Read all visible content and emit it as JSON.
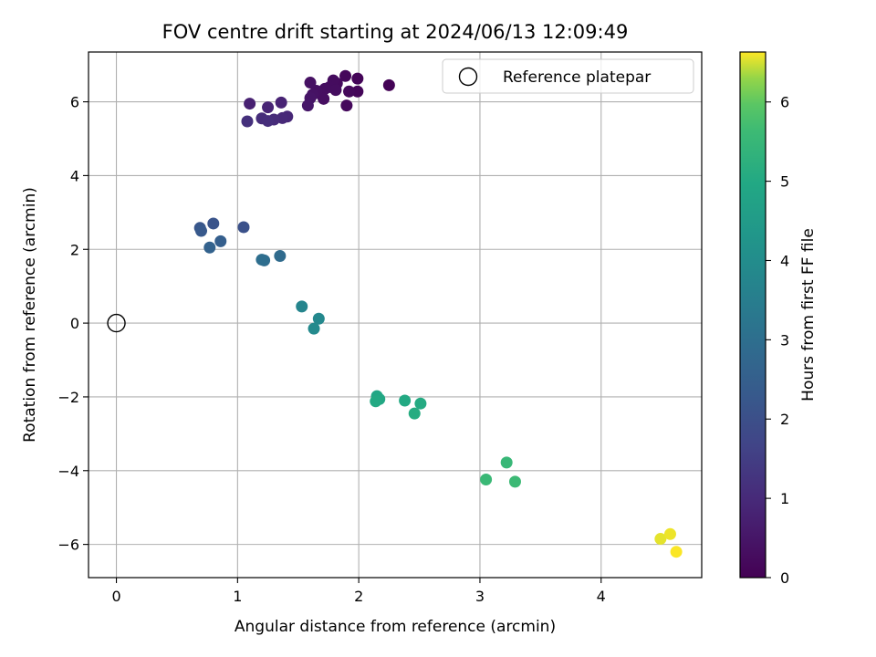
{
  "chart_data": {
    "type": "scatter",
    "title": "FOV centre drift starting at 2024/06/13 12:09:49",
    "xlabel": "Angular distance from reference (arcmin)",
    "ylabel": "Rotation from reference (arcmin)",
    "xlim": [
      -0.23,
      4.83
    ],
    "ylim": [
      -6.9,
      7.35
    ],
    "xticks": [
      0,
      1,
      2,
      3,
      4
    ],
    "yticks": [
      -6,
      -4,
      -2,
      0,
      2,
      4,
      6
    ],
    "grid": true,
    "legend": {
      "location": "upper right",
      "entries": [
        "Reference platepar"
      ]
    },
    "reference_point": {
      "name": "Reference platepar",
      "x": 0,
      "y": 0
    },
    "colorbar": {
      "label": "Hours from first FF file",
      "colormap": "viridis",
      "range": [
        0,
        6.63
      ],
      "ticks": [
        0,
        1,
        2,
        3,
        4,
        5,
        6
      ]
    },
    "points": [
      {
        "x": 2.25,
        "y": 6.45,
        "hours": 0.05
      },
      {
        "x": 1.99,
        "y": 6.63,
        "hours": 0.1
      },
      {
        "x": 1.99,
        "y": 6.28,
        "hours": 0.12
      },
      {
        "x": 1.89,
        "y": 6.7,
        "hours": 0.15
      },
      {
        "x": 1.92,
        "y": 6.28,
        "hours": 0.18
      },
      {
        "x": 1.9,
        "y": 5.9,
        "hours": 0.2
      },
      {
        "x": 1.82,
        "y": 6.5,
        "hours": 0.22
      },
      {
        "x": 1.79,
        "y": 6.58,
        "hours": 0.25
      },
      {
        "x": 1.76,
        "y": 6.4,
        "hours": 0.27
      },
      {
        "x": 1.81,
        "y": 6.32,
        "hours": 0.28
      },
      {
        "x": 1.72,
        "y": 6.35,
        "hours": 0.3
      },
      {
        "x": 1.69,
        "y": 6.2,
        "hours": 0.32
      },
      {
        "x": 1.71,
        "y": 6.08,
        "hours": 0.33
      },
      {
        "x": 1.65,
        "y": 6.3,
        "hours": 0.35
      },
      {
        "x": 1.6,
        "y": 6.52,
        "hours": 0.37
      },
      {
        "x": 1.62,
        "y": 6.2,
        "hours": 0.4
      },
      {
        "x": 1.6,
        "y": 6.1,
        "hours": 0.45
      },
      {
        "x": 1.58,
        "y": 5.9,
        "hours": 0.5
      },
      {
        "x": 1.1,
        "y": 5.95,
        "hours": 0.75
      },
      {
        "x": 1.36,
        "y": 5.98,
        "hours": 0.8
      },
      {
        "x": 1.25,
        "y": 5.85,
        "hours": 0.85
      },
      {
        "x": 1.41,
        "y": 5.6,
        "hours": 0.9
      },
      {
        "x": 1.37,
        "y": 5.56,
        "hours": 0.95
      },
      {
        "x": 1.3,
        "y": 5.52,
        "hours": 1.0
      },
      {
        "x": 1.2,
        "y": 5.55,
        "hours": 1.05
      },
      {
        "x": 1.25,
        "y": 5.48,
        "hours": 1.1
      },
      {
        "x": 1.08,
        "y": 5.47,
        "hours": 1.15
      },
      {
        "x": 1.05,
        "y": 2.6,
        "hours": 2.05
      },
      {
        "x": 0.8,
        "y": 2.7,
        "hours": 2.15
      },
      {
        "x": 0.69,
        "y": 2.58,
        "hours": 2.2
      },
      {
        "x": 0.7,
        "y": 2.5,
        "hours": 2.3
      },
      {
        "x": 0.86,
        "y": 2.22,
        "hours": 2.5
      },
      {
        "x": 0.77,
        "y": 2.05,
        "hours": 2.6
      },
      {
        "x": 1.35,
        "y": 1.82,
        "hours": 2.9
      },
      {
        "x": 1.22,
        "y": 1.7,
        "hours": 2.95
      },
      {
        "x": 1.2,
        "y": 1.72,
        "hours": 3.0
      },
      {
        "x": 1.53,
        "y": 0.45,
        "hours": 3.75
      },
      {
        "x": 1.67,
        "y": 0.12,
        "hours": 3.85
      },
      {
        "x": 1.63,
        "y": -0.15,
        "hours": 3.9
      },
      {
        "x": 2.15,
        "y": -1.98,
        "hours": 4.9
      },
      {
        "x": 2.17,
        "y": -2.06,
        "hours": 4.95
      },
      {
        "x": 2.14,
        "y": -2.12,
        "hours": 5.0
      },
      {
        "x": 2.38,
        "y": -2.1,
        "hours": 5.0
      },
      {
        "x": 2.51,
        "y": -2.18,
        "hours": 5.05
      },
      {
        "x": 2.46,
        "y": -2.45,
        "hours": 5.1
      },
      {
        "x": 3.22,
        "y": -3.78,
        "hours": 5.5
      },
      {
        "x": 3.05,
        "y": -4.24,
        "hours": 5.55
      },
      {
        "x": 3.29,
        "y": -4.3,
        "hours": 5.6
      },
      {
        "x": 4.49,
        "y": -5.85,
        "hours": 6.55
      },
      {
        "x": 4.57,
        "y": -5.72,
        "hours": 6.58
      },
      {
        "x": 4.62,
        "y": -6.2,
        "hours": 6.62
      }
    ]
  }
}
